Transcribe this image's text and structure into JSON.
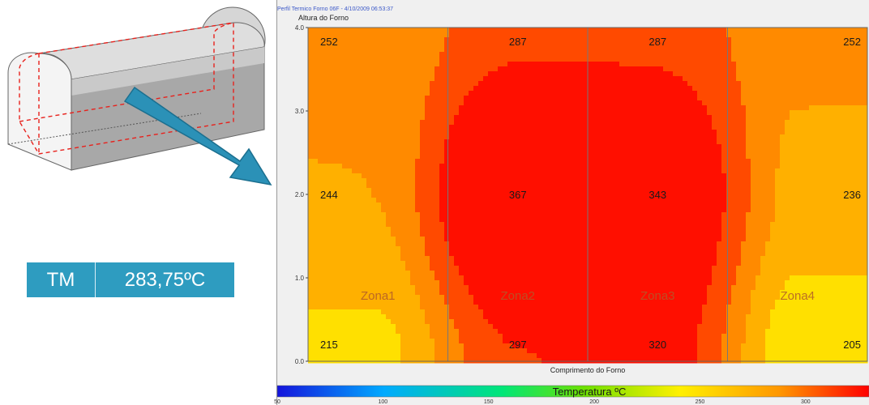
{
  "info_box": {
    "label": "TM",
    "value": "283,75ºC"
  },
  "chart_data": {
    "type": "heatmap",
    "title": "Perfil Termico Forno 06F - 4/10/2009 06:53:37",
    "xlabel": "Comprimento do Forno",
    "ylabel": "Altura do Forno",
    "ylim": [
      0,
      4
    ],
    "y_ticks": [
      "0.0",
      "1.0",
      "2.0",
      "3.0",
      "4.0"
    ],
    "zones": [
      "Zona1",
      "Zona2",
      "Zona3",
      "Zona4"
    ],
    "heights": [
      0,
      2,
      4
    ],
    "values": [
      [
        215,
        297,
        320,
        205
      ],
      [
        244,
        367,
        343,
        236
      ],
      [
        252,
        287,
        287,
        252
      ]
    ],
    "colorbar": {
      "title": "Temperatura ºC",
      "ticks": [
        "50",
        "100",
        "150",
        "200",
        "250",
        "300"
      ]
    }
  }
}
